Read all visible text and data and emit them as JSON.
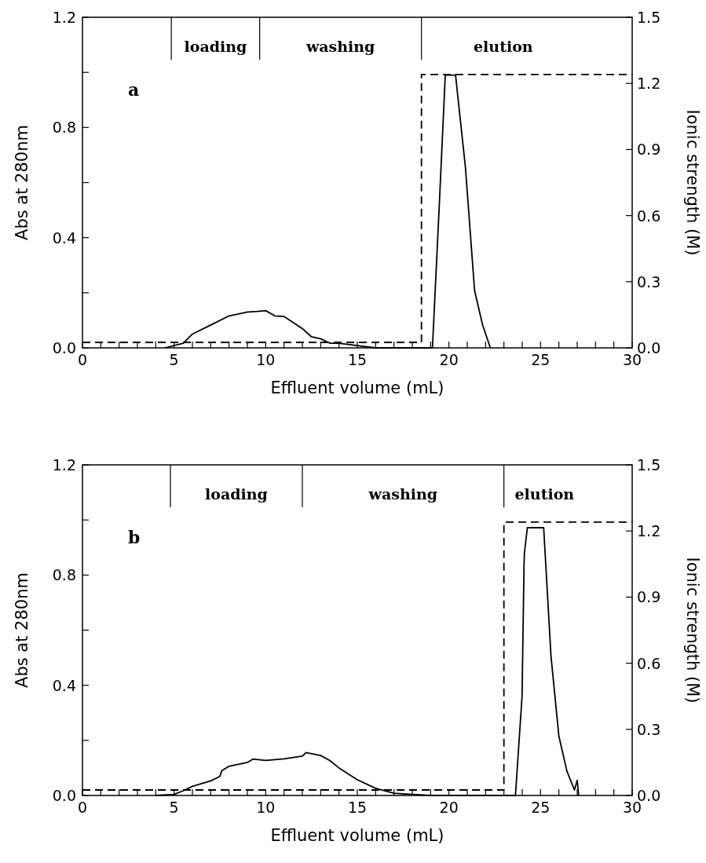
{
  "chart_data": [
    {
      "type": "line",
      "xlabel": "Effluent volume (mL)",
      "ylabel": "Abs at 280nm",
      "y2label": "Ionic strength (M)",
      "annotations": [
        "a",
        "loading",
        "washing",
        "elution"
      ],
      "xlim": [
        0,
        30
      ],
      "xticks": [
        0,
        {
          "value": 1,
          "label": null
        },
        {
          "value": 2,
          "label": null
        },
        {
          "value": 3,
          "label": null
        },
        {
          "value": 4,
          "label": null
        },
        5,
        {
          "value": 6,
          "label": null
        },
        {
          "value": 7,
          "label": null
        },
        {
          "value": 8,
          "label": null
        },
        {
          "value": 9,
          "label": null
        },
        10,
        {
          "value": 11,
          "label": null
        },
        {
          "value": 12,
          "label": null
        },
        {
          "value": 13,
          "label": null
        },
        {
          "value": 14,
          "label": null
        },
        15,
        {
          "value": 16,
          "label": null
        },
        {
          "value": 17,
          "label": null
        },
        {
          "value": 18,
          "label": null
        },
        {
          "value": 19,
          "label": null
        },
        20,
        {
          "value": 21,
          "label": null
        },
        {
          "value": 22,
          "label": null
        },
        {
          "value": 23,
          "label": null
        },
        {
          "value": 24,
          "label": null
        },
        25,
        {
          "value": 26,
          "label": null
        },
        {
          "value": 27,
          "label": null
        },
        {
          "value": 28,
          "label": null
        },
        {
          "value": 29,
          "label": null
        },
        30
      ],
      "ylim": [
        0,
        1.2
      ],
      "yticks": [
        {
          "value": 0,
          "label": "0.0"
        },
        {
          "value": 0.2,
          "label": null
        },
        0.4,
        {
          "value": 0.6,
          "label": null
        },
        0.8,
        {
          "value": 1.0,
          "label": null
        },
        1.2
      ],
      "y2lim": [
        0,
        1.5
      ],
      "y2ticks": [
        {
          "value": 0,
          "label": "0.0"
        },
        0.3,
        0.6,
        0.9,
        1.2,
        1.5
      ],
      "grid": false,
      "ref_lines": [
        {
          "axis": "x",
          "value": 4.85
        },
        {
          "axis": "x",
          "value": 9.67
        },
        {
          "axis": "x",
          "value": 18.5
        }
      ],
      "series": [
        {
          "color": "#000000",
          "x": [
            4.5,
            5.5,
            6,
            7,
            8,
            9,
            9.5,
            10,
            10.5,
            11,
            12,
            12.5,
            13,
            13.5,
            14,
            15,
            16,
            19.1,
            19.45,
            19.8,
            20.36,
            20.9,
            21.4,
            21.83,
            22.26
          ],
          "values": [
            0,
            0.017,
            0.05,
            0.083,
            0.116,
            0.13,
            0.132,
            0.135,
            0.116,
            0.114,
            0.07,
            0.04,
            0.033,
            0.017,
            0.017,
            0.008,
            0,
            0,
            0.485,
            0.99,
            0.99,
            0.655,
            0.208,
            0.085,
            0
          ]
        },
        {
          "type": "line",
          "axis": "y2",
          "line_style": "dashed",
          "color": "#000000",
          "x": [
            0,
            18.5,
            18.5,
            30
          ],
          "values": [
            0.025,
            0.025,
            1.24,
            1.24
          ]
        }
      ]
    },
    {
      "type": "line",
      "xlabel": "Effluent volume (mL)",
      "ylabel": "Abs at 280nm",
      "y2label": "Ionic strength (M)",
      "annotations": [
        "b",
        "loading",
        "washing",
        "elution"
      ],
      "xlim": [
        0,
        30
      ],
      "xticks": [
        0,
        {
          "value": 1,
          "label": null
        },
        {
          "value": 2,
          "label": null
        },
        {
          "value": 3,
          "label": null
        },
        {
          "value": 4,
          "label": null
        },
        5,
        {
          "value": 6,
          "label": null
        },
        {
          "value": 7,
          "label": null
        },
        {
          "value": 8,
          "label": null
        },
        {
          "value": 9,
          "label": null
        },
        10,
        {
          "value": 11,
          "label": null
        },
        {
          "value": 12,
          "label": null
        },
        {
          "value": 13,
          "label": null
        },
        {
          "value": 14,
          "label": null
        },
        15,
        {
          "value": 16,
          "label": null
        },
        {
          "value": 17,
          "label": null
        },
        {
          "value": 18,
          "label": null
        },
        {
          "value": 19,
          "label": null
        },
        20,
        {
          "value": 21,
          "label": null
        },
        {
          "value": 22,
          "label": null
        },
        {
          "value": 23,
          "label": null
        },
        {
          "value": 24,
          "label": null
        },
        25,
        {
          "value": 26,
          "label": null
        },
        {
          "value": 27,
          "label": null
        },
        {
          "value": 28,
          "label": null
        },
        {
          "value": 29,
          "label": null
        },
        30
      ],
      "ylim": [
        0,
        1.2
      ],
      "yticks": [
        {
          "value": 0,
          "label": "0.0"
        },
        {
          "value": 0.2,
          "label": null
        },
        0.4,
        {
          "value": 0.6,
          "label": null
        },
        0.8,
        {
          "value": 1.0,
          "label": null
        },
        1.2
      ],
      "y2lim": [
        0,
        1.5
      ],
      "y2ticks": [
        {
          "value": 0,
          "label": "0.0"
        },
        0.3,
        0.6,
        0.9,
        1.2,
        1.5
      ],
      "grid": false,
      "ref_lines": [
        {
          "axis": "x",
          "value": 4.8
        },
        {
          "axis": "x",
          "value": 12.0
        },
        {
          "axis": "x",
          "value": 23.0
        }
      ],
      "series": [
        {
          "color": "#000000",
          "x": [
            4.0,
            5,
            5.5,
            6,
            7,
            7.5,
            7.6,
            8,
            9,
            9.3,
            10,
            11,
            12,
            12.2,
            13,
            13.5,
            14,
            15,
            16,
            17,
            18,
            19,
            23.63,
            23.99,
            24.1,
            24.12,
            24.28,
            25.17,
            25.57,
            26.0,
            26.44,
            26.85,
            27.0,
            27.08
          ],
          "values": [
            0,
            0.004,
            0.017,
            0.033,
            0.053,
            0.069,
            0.09,
            0.106,
            0.12,
            0.132,
            0.127,
            0.133,
            0.143,
            0.156,
            0.145,
            0.127,
            0.1,
            0.057,
            0.026,
            0.008,
            0.004,
            0,
            0,
            0.36,
            0.844,
            0.88,
            0.972,
            0.972,
            0.505,
            0.215,
            0.088,
            0.02,
            0.055,
            0
          ]
        },
        {
          "type": "line",
          "axis": "y2",
          "line_style": "dashed",
          "color": "#000000",
          "x": [
            0,
            23.0,
            23.0,
            30
          ],
          "values": [
            0.025,
            0.025,
            1.24,
            1.24
          ]
        }
      ]
    }
  ]
}
